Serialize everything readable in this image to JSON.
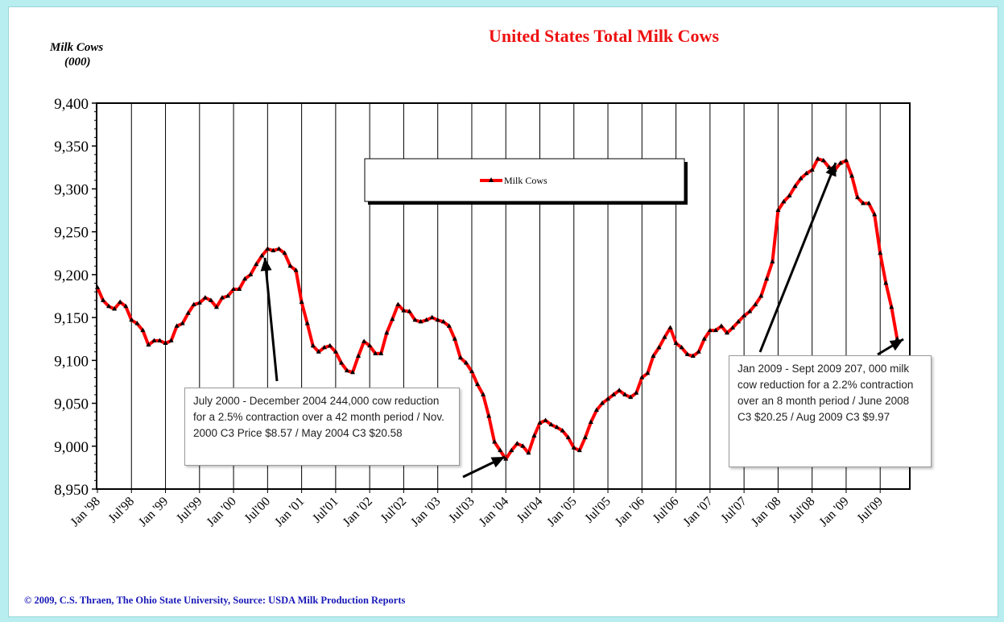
{
  "chart_data": {
    "type": "line",
    "title": "United States Total Milk Cows",
    "ylabel": "Milk Cows",
    "ylabel_unit": "(000)",
    "ylim": [
      8950,
      9400
    ],
    "yticks": [
      8950,
      9000,
      9050,
      9100,
      9150,
      9200,
      9250,
      9300,
      9350,
      9400
    ],
    "ytick_labels": [
      "8,950",
      "9,000",
      "9,050",
      "9,100",
      "9,150",
      "9,200",
      "9,250",
      "9,300",
      "9,350",
      "9,400"
    ],
    "xticks": [
      "Jan '98",
      "Jul'98",
      "Jan '99",
      "Jul'99",
      "Jan '00",
      "Jul'00",
      "Jan '01",
      "Jul'01",
      "Jan '02",
      "Jul'02",
      "Jan '03",
      "Jul'03",
      "Jan '04",
      "Jul'04",
      "Jan '05",
      "Jul'05",
      "Jan '06",
      "Jul'06",
      "Jan '07",
      "Jul'07",
      "Jan '08",
      "Jul'08",
      "Jan '09",
      "Jul'09"
    ],
    "x_start": "1998-01",
    "x_step": "month",
    "grid": "vertical",
    "legend_position": "top-center",
    "series": [
      {
        "name": "Milk Cows",
        "color": "#ff0000",
        "marker_color": "#000000",
        "values": [
          9185,
          9170,
          9163,
          9160,
          9168,
          9163,
          9147,
          9143,
          9135,
          9118,
          9123,
          9123,
          9120,
          9123,
          9140,
          9143,
          9155,
          9165,
          9167,
          9173,
          9170,
          9162,
          9173,
          9175,
          9183,
          9183,
          9195,
          9200,
          9212,
          9222,
          9230,
          9228,
          9230,
          9225,
          9210,
          9205,
          9168,
          9143,
          9117,
          9110,
          9115,
          9117,
          9110,
          9097,
          9088,
          9086,
          9105,
          9122,
          9117,
          9108,
          9108,
          9132,
          9148,
          9165,
          9158,
          9157,
          9147,
          9145,
          9147,
          9150,
          9147,
          9145,
          9140,
          9125,
          9103,
          9097,
          9087,
          9072,
          9060,
          9035,
          9005,
          8995,
          8985,
          8995,
          9003,
          9000,
          8992,
          9012,
          9027,
          9030,
          9025,
          9022,
          9018,
          9010,
          8998,
          8995,
          9010,
          9028,
          9042,
          9050,
          9055,
          9060,
          9065,
          9060,
          9057,
          9062,
          9080,
          9085,
          9105,
          9115,
          9127,
          9138,
          9120,
          9115,
          9107,
          9105,
          9110,
          9125,
          9135,
          9135,
          9140,
          9132,
          9138,
          9145,
          9152,
          9157,
          9165,
          9175,
          9195,
          9215,
          9275,
          9285,
          9292,
          9303,
          9312,
          9318,
          9322,
          9335,
          9333,
          9325,
          9322,
          9330,
          9333,
          9315,
          9290,
          9283,
          9283,
          9270,
          9225,
          9190,
          9162,
          9125
        ]
      }
    ],
    "annotations": [
      "July 2000  - December 2004 244,000 cow reduction for a 2.5% contraction over a 42 month period / Nov. 2000  C3 Price $8.57 / May 2004  C3 $20.58",
      "Jan 2009  - Sept 2009 207, 000 milk cow reduction for a 2.2% contraction over an 8 month period /  June 2008 C3 $20.25 / Aug 2009 C3 $9.97"
    ]
  },
  "credit": "© 2009, C.S.  Thraen, The Ohio State University, Source: USDA Milk Production Reports"
}
